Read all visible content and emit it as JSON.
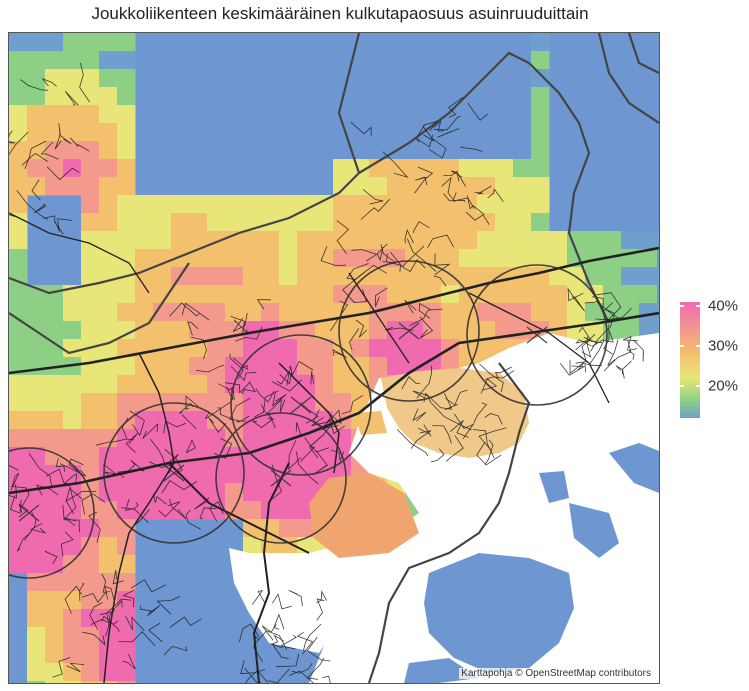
{
  "title": "Joukkoliikenteen keskimääräinen kulkutapaosuus asuinruuduittain",
  "attribution": "Karttapohja © OpenStreetMap contributors",
  "legend": {
    "ticks": [
      "40%",
      "30%",
      "20%"
    ],
    "colors": [
      "#f06ab0",
      "#f39a8c",
      "#f3c06e",
      "#e8e678",
      "#8dcf84",
      "#6f9fcc"
    ]
  },
  "colors": {
    "water": "#ffffff",
    "no_data": "#6e96d0",
    "roads": "#222222",
    "circles": "#333333"
  }
}
